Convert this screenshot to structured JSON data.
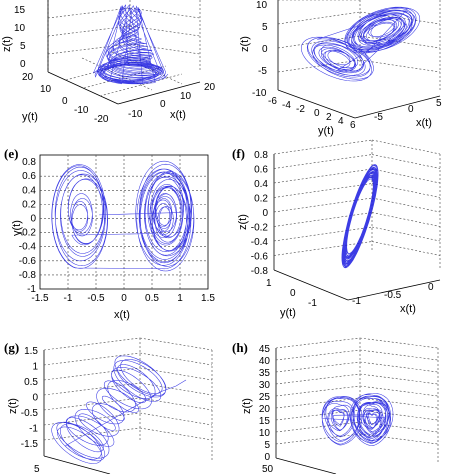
{
  "colors": {
    "trajectory": "#1a1adf",
    "axis": "#000000",
    "grid": "#444444"
  },
  "panels": [
    {
      "id": "a",
      "label": "",
      "xlabel": "x(t)",
      "ylabel": "y(t)",
      "zlabel": "z(t)",
      "zticks": [
        "15",
        "10",
        "5",
        "0"
      ],
      "yticks": [
        "20",
        "10",
        "0",
        "-10",
        "-20"
      ],
      "xticks": [
        "-20",
        "-10",
        "0",
        "10",
        "20"
      ]
    },
    {
      "id": "b",
      "label": "",
      "xlabel": "x(t)",
      "ylabel": "y(t)",
      "zlabel": "z(t)",
      "zticks": [
        "10",
        "5",
        "0",
        "-5",
        "-10"
      ],
      "yticks": [
        "-6",
        "-4",
        "-2",
        "0",
        "2",
        "4",
        "6"
      ],
      "xticks": [
        "-5",
        "0",
        "5"
      ]
    },
    {
      "id": "e",
      "label": "(e)",
      "xlabel": "x(t)",
      "ylabel": "y(t)",
      "yticks": [
        "0.8",
        "0.6",
        "0.4",
        "0.2",
        "0",
        "-0.2",
        "-0.4",
        "-0.6",
        "-0.8",
        "-1"
      ],
      "xticks": [
        "-1.5",
        "-1",
        "-0.5",
        "0",
        "0.5",
        "1",
        "1.5"
      ]
    },
    {
      "id": "f",
      "label": "(f)",
      "xlabel": "x(t)",
      "ylabel": "y(t)",
      "zlabel": "z(t)",
      "zticks": [
        "0.8",
        "0.6",
        "0.4",
        "0.2",
        "0",
        "-0.2",
        "-0.4",
        "-0.6",
        "-0.8"
      ],
      "yticks": [
        "1",
        "0",
        "-1"
      ],
      "xticks": [
        "-1",
        "-0.5",
        "0"
      ]
    },
    {
      "id": "g",
      "label": "(g)",
      "xlabel": "",
      "ylabel": "",
      "zlabel": "z(t)",
      "zticks": [
        "1.5",
        "1",
        "0.5",
        "0",
        "-0.5",
        "-1",
        "-1.5"
      ],
      "yticks": [
        "5"
      ],
      "xticks": []
    },
    {
      "id": "h",
      "label": "(h)",
      "xlabel": "",
      "ylabel": "",
      "zlabel": "z(t)",
      "zticks": [
        "45",
        "40",
        "35",
        "30",
        "25",
        "20",
        "15",
        "10",
        "5",
        "0"
      ],
      "yticks": [
        "50"
      ],
      "xticks": []
    }
  ],
  "chart_data": [
    {
      "panel": "a",
      "type": "line",
      "series": [
        {
          "system": "lorenz-type funnel"
        }
      ],
      "ylim": [
        -20,
        20
      ],
      "xlim": [
        -20,
        20
      ],
      "zlim": [
        0,
        15
      ]
    },
    {
      "panel": "b",
      "type": "line",
      "series": [
        {
          "system": "double-scroll 3D"
        }
      ],
      "xlim": [
        -5,
        5
      ],
      "ylim": [
        -6,
        6
      ],
      "zlim": [
        -10,
        10
      ]
    },
    {
      "panel": "e",
      "type": "line",
      "series": [
        {
          "system": "double-scroll planar"
        }
      ],
      "xlim": [
        -1.5,
        1.5
      ],
      "ylim": [
        -1,
        0.8
      ]
    },
    {
      "panel": "f",
      "type": "line",
      "series": [
        {
          "system": "tilted loop 3D"
        }
      ],
      "zlim": [
        -0.8,
        0.8
      ],
      "xlim": [
        -1,
        0
      ]
    },
    {
      "panel": "g",
      "type": "line",
      "series": [
        {
          "system": "twisted band 3D"
        }
      ],
      "zlim": [
        -1.5,
        1.5
      ]
    },
    {
      "panel": "h",
      "type": "line",
      "series": [
        {
          "system": "butterfly 3D"
        }
      ],
      "zlim": [
        0,
        45
      ]
    }
  ]
}
